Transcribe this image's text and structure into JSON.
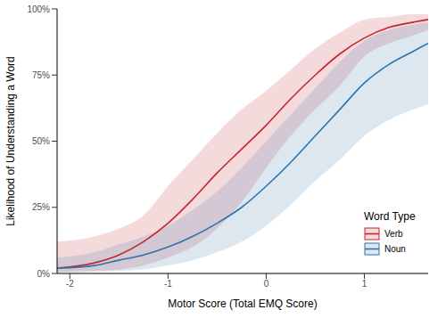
{
  "chart_data": {
    "type": "line",
    "x_label": "Motor Score (Total EMQ Score)",
    "y_label": "Likelihood of Understanding a Word",
    "legend_title": "Word Type",
    "legend": "lower right",
    "grid": false,
    "x": [
      -2.13,
      -1.75,
      -1.5,
      -1.25,
      -1,
      -0.75,
      -0.5,
      -0.25,
      0,
      0.25,
      0.5,
      0.75,
      1,
      1.25,
      1.5,
      1.65
    ],
    "xlim": [
      -2.13,
      1.65
    ],
    "xticks": [
      -2,
      -1,
      0,
      1
    ],
    "ylim": [
      0,
      100
    ],
    "yticks": [
      {
        "value": 0,
        "label": "0%"
      },
      {
        "value": 25,
        "label": "25%"
      },
      {
        "value": 50,
        "label": "50%"
      },
      {
        "value": 75,
        "label": "75%"
      },
      {
        "value": 100,
        "label": "100%"
      }
    ],
    "series": [
      {
        "name": "Verb",
        "color": "#c4262e",
        "values": [
          2,
          4,
          7,
          12,
          19,
          28,
          38,
          47,
          56,
          66,
          75,
          83,
          89,
          93,
          95,
          96
        ],
        "lower": [
          0.5,
          1,
          1.5,
          3,
          6,
          10,
          17,
          27,
          40,
          52,
          62,
          71,
          82,
          87,
          90,
          92
        ],
        "upper": [
          12,
          14,
          17,
          22,
          33,
          43,
          53,
          62,
          69,
          77,
          85,
          91,
          96,
          97,
          98,
          98
        ]
      },
      {
        "name": "Noun",
        "color": "#2f73a8",
        "values": [
          2,
          3,
          5,
          7,
          10,
          14,
          19,
          25,
          33,
          42,
          52,
          62,
          72,
          79,
          84,
          87
        ],
        "lower": [
          0.3,
          0.5,
          1,
          1.5,
          3,
          5,
          8,
          12,
          18,
          26,
          35,
          43,
          52,
          58,
          62,
          64
        ],
        "upper": [
          6,
          8,
          11,
          14,
          18,
          24,
          31,
          40,
          50,
          60,
          70,
          80,
          88,
          92,
          94,
          95
        ]
      }
    ]
  }
}
